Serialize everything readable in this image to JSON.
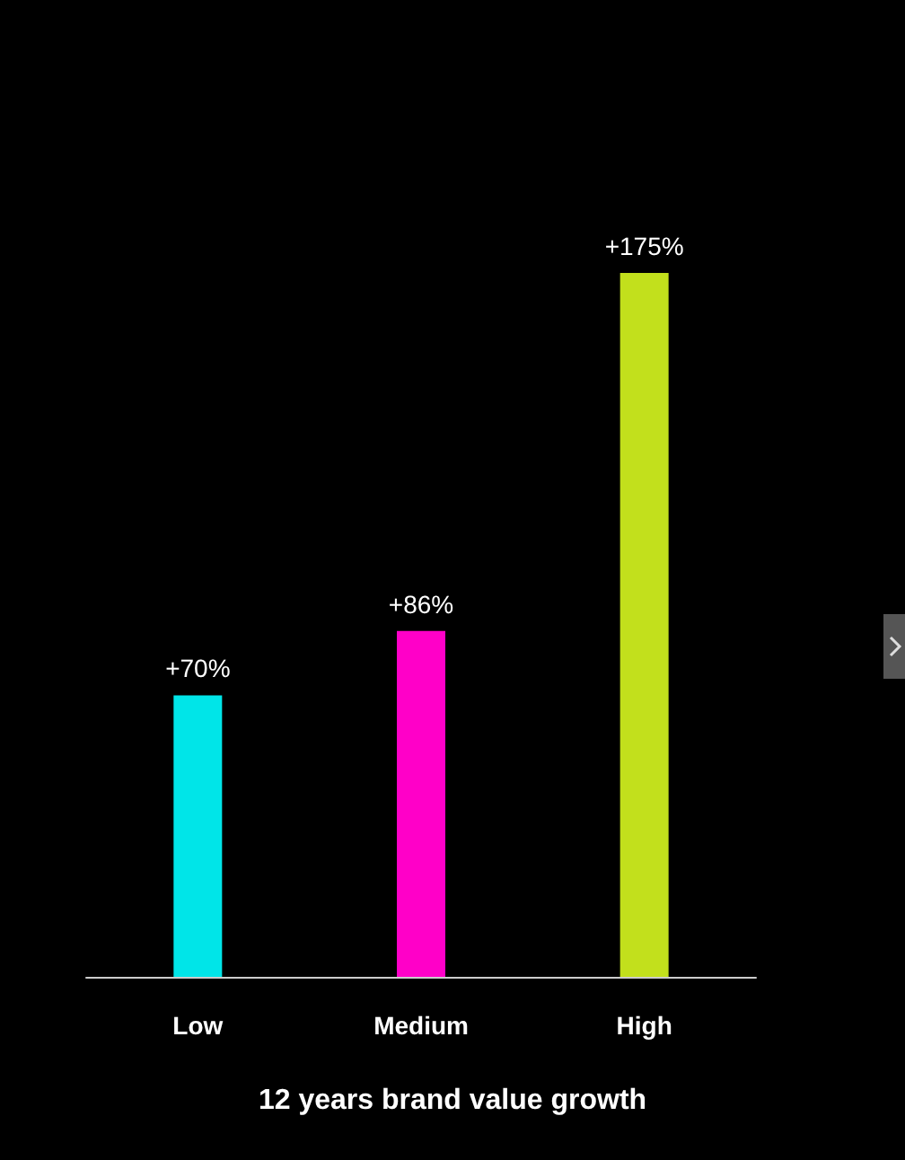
{
  "chart_data": {
    "type": "bar",
    "title": "12 years brand value growth",
    "categories": [
      "Low",
      "Medium",
      "High"
    ],
    "values": [
      70,
      86,
      175
    ],
    "value_labels": [
      "+70%",
      "+86%",
      "+175%"
    ],
    "colors": [
      "#00e5e8",
      "#ff00c8",
      "#c2e01c"
    ]
  }
}
